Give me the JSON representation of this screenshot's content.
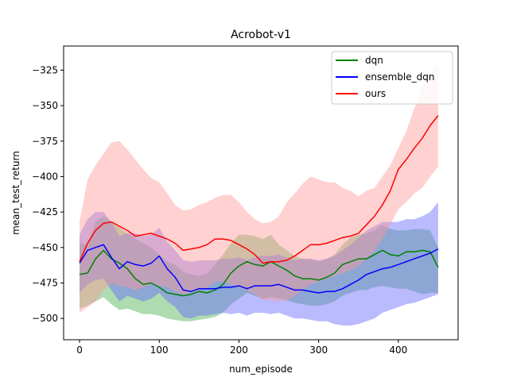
{
  "chart_data": {
    "type": "line",
    "title": "Acrobot-v1",
    "xlabel": "num_episode",
    "ylabel": "mean_test_return",
    "xlim": [
      -20,
      475
    ],
    "ylim": [
      -515,
      -308
    ],
    "xticks": [
      0,
      100,
      200,
      300,
      400
    ],
    "yticks": [
      -500,
      -475,
      -450,
      -425,
      -400,
      -375,
      -350,
      -325
    ],
    "grid": false,
    "legend_position": "top-right",
    "x": [
      0,
      10,
      20,
      30,
      40,
      50,
      60,
      70,
      80,
      90,
      100,
      110,
      120,
      130,
      140,
      150,
      160,
      170,
      180,
      190,
      200,
      210,
      220,
      230,
      240,
      250,
      260,
      270,
      280,
      290,
      300,
      310,
      320,
      330,
      340,
      350,
      360,
      370,
      380,
      390,
      400,
      410,
      420,
      430,
      440,
      450
    ],
    "series": [
      {
        "name": "dqn",
        "color": "#008000",
        "band_color": "#4caf50",
        "values": [
          -469,
          -468,
          -458,
          -452,
          -458,
          -461,
          -465,
          -472,
          -476,
          -475,
          -478,
          -482,
          -483,
          -484,
          -483,
          -481,
          -482,
          -480,
          -476,
          -468,
          -463,
          -460,
          -462,
          -463,
          -460,
          -463,
          -466,
          -470,
          -472,
          -472,
          -473,
          -471,
          -468,
          -462,
          -460,
          -458,
          -458,
          -455,
          -452,
          -455,
          -456,
          -453,
          -453,
          -452,
          -453,
          -464
        ],
        "upper": [
          -447,
          -448,
          -432,
          -428,
          -432,
          -436,
          -440,
          -444,
          -447,
          -450,
          -455,
          -460,
          -462,
          -467,
          -469,
          -470,
          -468,
          -462,
          -455,
          -447,
          -441,
          -441,
          -442,
          -444,
          -441,
          -448,
          -452,
          -456,
          -458,
          -458,
          -460,
          -458,
          -455,
          -448,
          -443,
          -441,
          -440,
          -438,
          -434,
          -437,
          -438,
          -438,
          -437,
          -437,
          -438,
          -450
        ],
        "lower": [
          -493,
          -491,
          -488,
          -485,
          -490,
          -494,
          -493,
          -495,
          -497,
          -497,
          -498,
          -500,
          -501,
          -502,
          -502,
          -501,
          -500,
          -499,
          -496,
          -490,
          -486,
          -482,
          -484,
          -486,
          -485,
          -486,
          -487,
          -489,
          -490,
          -491,
          -491,
          -490,
          -488,
          -484,
          -482,
          -480,
          -480,
          -478,
          -477,
          -478,
          -479,
          -479,
          -481,
          -483,
          -482,
          -482
        ]
      },
      {
        "name": "ensemble_dqn",
        "color": "#0000ff",
        "band_color": "#6666ff",
        "values": [
          -461,
          -452,
          -450,
          -448,
          -457,
          -465,
          -460,
          -462,
          -463,
          -461,
          -456,
          -465,
          -471,
          -480,
          -481,
          -479,
          -479,
          -479,
          -478,
          -478,
          -477,
          -479,
          -477,
          -477,
          -477,
          -476,
          -478,
          -480,
          -480,
          -481,
          -482,
          -481,
          -481,
          -479,
          -476,
          -473,
          -469,
          -467,
          -465,
          -464,
          -462,
          -460,
          -458,
          -456,
          -454,
          -451
        ],
        "upper": [
          -441,
          -430,
          -425,
          -425,
          -432,
          -442,
          -440,
          -440,
          -442,
          -441,
          -436,
          -446,
          -452,
          -459,
          -460,
          -459,
          -459,
          -459,
          -458,
          -458,
          -457,
          -459,
          -457,
          -456,
          -456,
          -455,
          -457,
          -459,
          -458,
          -458,
          -459,
          -458,
          -456,
          -452,
          -448,
          -443,
          -438,
          -435,
          -432,
          -432,
          -432,
          -430,
          -430,
          -428,
          -425,
          -418
        ],
        "lower": [
          -482,
          -476,
          -473,
          -472,
          -480,
          -488,
          -484,
          -486,
          -488,
          -486,
          -482,
          -488,
          -492,
          -499,
          -500,
          -498,
          -498,
          -497,
          -496,
          -497,
          -496,
          -498,
          -496,
          -496,
          -497,
          -496,
          -498,
          -500,
          -500,
          -501,
          -502,
          -502,
          -504,
          -505,
          -505,
          -504,
          -502,
          -500,
          -496,
          -494,
          -492,
          -490,
          -489,
          -487,
          -485,
          -483
        ]
      },
      {
        "name": "ours",
        "color": "#ff0000",
        "band_color": "#ff9999",
        "values": [
          -460,
          -447,
          -438,
          -433,
          -432,
          -435,
          -438,
          -442,
          -441,
          -440,
          -442,
          -444,
          -447,
          -452,
          -451,
          -450,
          -448,
          -444,
          -444,
          -445,
          -448,
          -451,
          -455,
          -461,
          -460,
          -460,
          -459,
          -456,
          -452,
          -448,
          -448,
          -447,
          -445,
          -443,
          -442,
          -440,
          -434,
          -428,
          -420,
          -410,
          -395,
          -388,
          -380,
          -373,
          -364,
          -357
        ],
        "upper": [
          -432,
          -402,
          -392,
          -384,
          -376,
          -375,
          -381,
          -388,
          -395,
          -401,
          -404,
          -412,
          -420,
          -424,
          -423,
          -420,
          -418,
          -415,
          -413,
          -413,
          -418,
          -425,
          -430,
          -433,
          -432,
          -428,
          -418,
          -412,
          -405,
          -400,
          -402,
          -404,
          -404,
          -408,
          -410,
          -414,
          -410,
          -408,
          -400,
          -392,
          -380,
          -368,
          -352,
          -337,
          -328,
          -320
        ],
        "lower": [
          -496,
          -492,
          -488,
          -480,
          -475,
          -477,
          -478,
          -480,
          -478,
          -476,
          -477,
          -478,
          -481,
          -483,
          -482,
          -480,
          -478,
          -474,
          -474,
          -476,
          -478,
          -480,
          -483,
          -487,
          -487,
          -488,
          -487,
          -484,
          -480,
          -476,
          -474,
          -472,
          -470,
          -468,
          -466,
          -463,
          -458,
          -452,
          -444,
          -434,
          -423,
          -418,
          -412,
          -408,
          -400,
          -393
        ]
      }
    ]
  }
}
